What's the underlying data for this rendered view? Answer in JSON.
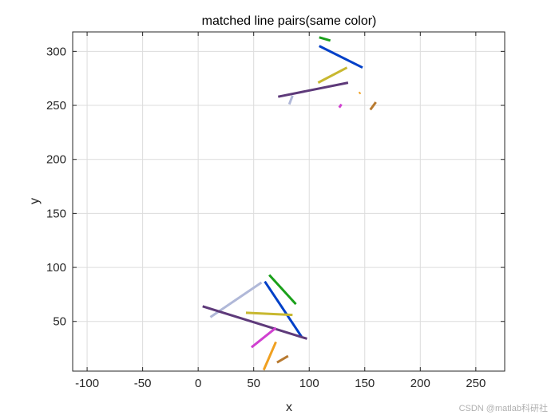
{
  "chart_data": {
    "type": "line",
    "title": "matched line pairs(same color)",
    "xlabel": "x",
    "ylabel": "y",
    "xlim": [
      -113,
      276
    ],
    "ylim": [
      4,
      318
    ],
    "xticks": [
      -100,
      -50,
      0,
      50,
      100,
      150,
      200,
      250
    ],
    "yticks": [
      50,
      100,
      150,
      200,
      250,
      300
    ],
    "xtick_labels": [
      "-100",
      "-50",
      "0",
      "50",
      "100",
      "150",
      "200",
      "250"
    ],
    "ytick_labels": [
      "50",
      "100",
      "150",
      "200",
      "250",
      "300"
    ],
    "grid": true,
    "segments": [
      {
        "color": "#1aa01a",
        "x": [
          64,
          88
        ],
        "y": [
          93,
          66
        ]
      },
      {
        "color": "#1aa01a",
        "x": [
          109,
          119
        ],
        "y": [
          313,
          310
        ]
      },
      {
        "color": "#0040c8",
        "x": [
          60,
          93
        ],
        "y": [
          87,
          36
        ]
      },
      {
        "color": "#0040c8",
        "x": [
          109,
          148
        ],
        "y": [
          305,
          285
        ]
      },
      {
        "color": "#b0b8d8",
        "x": [
          11,
          57
        ],
        "y": [
          54,
          86
        ]
      },
      {
        "color": "#b0b8d8",
        "x": [
          82,
          85
        ],
        "y": [
          251,
          259
        ]
      },
      {
        "color": "#5e3a7a",
        "x": [
          4,
          98
        ],
        "y": [
          64,
          34
        ]
      },
      {
        "color": "#5e3a7a",
        "x": [
          72,
          135
        ],
        "y": [
          258,
          271
        ]
      },
      {
        "color": "#c8b830",
        "x": [
          43,
          85
        ],
        "y": [
          58,
          56
        ]
      },
      {
        "color": "#c8b830",
        "x": [
          108,
          134
        ],
        "y": [
          271,
          285
        ]
      },
      {
        "color": "#d040d0",
        "x": [
          48,
          70
        ],
        "y": [
          26,
          44
        ]
      },
      {
        "color": "#d040d0",
        "x": [
          127,
          129
        ],
        "y": [
          248,
          251
        ]
      },
      {
        "color": "#f0a020",
        "x": [
          59,
          70
        ],
        "y": [
          5,
          31
        ]
      },
      {
        "color": "#f0a020",
        "x": [
          145,
          146
        ],
        "y": [
          261,
          262
        ]
      },
      {
        "color": "#b87a30",
        "x": [
          71,
          81
        ],
        "y": [
          12,
          18
        ]
      },
      {
        "color": "#b87a30",
        "x": [
          155,
          160
        ],
        "y": [
          246,
          253
        ]
      }
    ]
  },
  "watermark": "CSDN @matlab科研社"
}
